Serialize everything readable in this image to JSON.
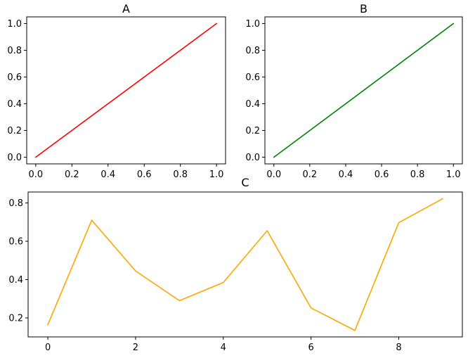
{
  "chart_data": [
    {
      "type": "line",
      "title": "A",
      "xlabel": "",
      "ylabel": "",
      "color": "#ff0000",
      "x": [
        0,
        1
      ],
      "y": [
        0,
        1
      ],
      "xlim": [
        -0.05,
        1.05
      ],
      "ylim": [
        -0.05,
        1.05
      ],
      "xticks": [
        0.0,
        0.2,
        0.4,
        0.6,
        0.8,
        1.0
      ],
      "xtick_labels": [
        "0.0",
        "0.2",
        "0.4",
        "0.6",
        "0.8",
        "1.0"
      ],
      "yticks": [
        0.0,
        0.2,
        0.4,
        0.6,
        0.8,
        1.0
      ],
      "ytick_labels": [
        "0.0",
        "0.2",
        "0.4",
        "0.6",
        "0.8",
        "1.0"
      ],
      "grid": false
    },
    {
      "type": "line",
      "title": "B",
      "xlabel": "",
      "ylabel": "",
      "color": "#008000",
      "x": [
        0,
        1
      ],
      "y": [
        0,
        1
      ],
      "xlim": [
        -0.05,
        1.05
      ],
      "ylim": [
        -0.05,
        1.05
      ],
      "xticks": [
        0.0,
        0.2,
        0.4,
        0.6,
        0.8,
        1.0
      ],
      "xtick_labels": [
        "0.0",
        "0.2",
        "0.4",
        "0.6",
        "0.8",
        "1.0"
      ],
      "yticks": [
        0.0,
        0.2,
        0.4,
        0.6,
        0.8,
        1.0
      ],
      "ytick_labels": [
        "0.0",
        "0.2",
        "0.4",
        "0.6",
        "0.8",
        "1.0"
      ],
      "grid": false
    },
    {
      "type": "line",
      "title": "C",
      "xlabel": "",
      "ylabel": "",
      "color": "#ffa500",
      "x": [
        0,
        1,
        2,
        3,
        4,
        5,
        6,
        7,
        8,
        9
      ],
      "y": [
        0.165,
        0.71,
        0.445,
        0.29,
        0.385,
        0.655,
        0.252,
        0.135,
        0.697,
        0.822
      ],
      "xlim": [
        -0.45,
        9.45
      ],
      "ylim": [
        0.101,
        0.857
      ],
      "xticks": [
        0,
        2,
        4,
        6,
        8
      ],
      "xtick_labels": [
        "0",
        "2",
        "4",
        "6",
        "8"
      ],
      "yticks": [
        0.2,
        0.4,
        0.6,
        0.8
      ],
      "ytick_labels": [
        "0.2",
        "0.4",
        "0.6",
        "0.8"
      ],
      "grid": false
    }
  ]
}
